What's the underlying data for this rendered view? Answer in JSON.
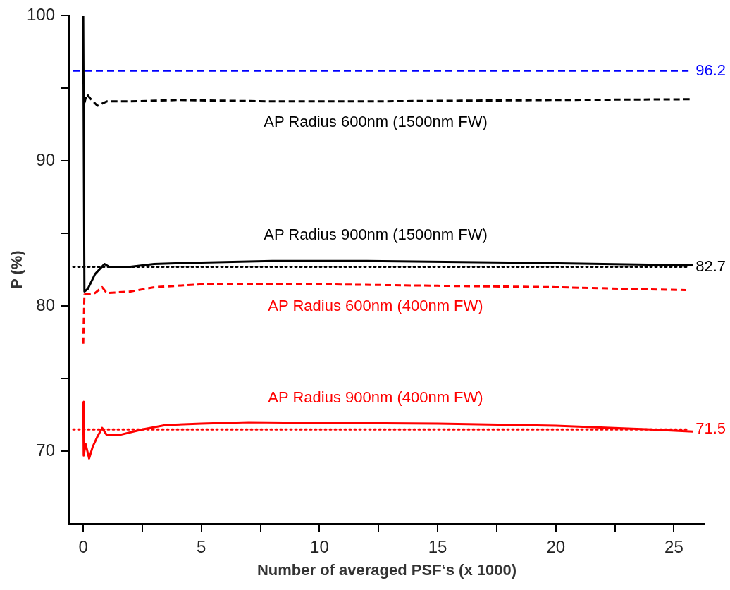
{
  "chart_data": {
    "type": "line",
    "xlabel": "Number of averaged PSF‘s (x 1000)",
    "ylabel": "P (%)",
    "xlim": [
      -0.6,
      26.3
    ],
    "xticks": [
      0,
      {
        "value": 2.5,
        "label": null
      },
      5,
      {
        "value": 7.5,
        "label": null
      },
      10,
      {
        "value": 12.5,
        "label": null
      },
      15,
      {
        "value": 17.5,
        "label": null
      },
      20,
      {
        "value": 22.5,
        "label": null
      },
      25
    ],
    "ylim": [
      65,
      100
    ],
    "yticks": [
      70,
      {
        "value": 75,
        "label": null
      },
      80,
      {
        "value": 85,
        "label": null
      },
      90,
      {
        "value": 95,
        "label": null
      },
      100
    ],
    "grid": false,
    "legend": false,
    "marker": "none",
    "series": [
      {
        "name": "AP Radius 600nm (1500nm FW)",
        "color": "#000000",
        "line_style": "dashed",
        "x": [
          0.05,
          0.15,
          0.3,
          0.6,
          1.0,
          2,
          4,
          8,
          12,
          16,
          20,
          25.8
        ],
        "values": [
          94.0,
          94.6,
          94.3,
          93.8,
          94.1,
          94.1,
          94.2,
          94.1,
          94.1,
          94.15,
          94.2,
          94.25
        ]
      },
      {
        "name": "AP Radius 900nm (1500nm FW)",
        "color": "#000000",
        "line_style": "solid",
        "x": [
          0,
          0.05,
          0.2,
          0.5,
          0.9,
          1.1,
          2,
          3,
          5,
          8,
          12,
          18,
          22,
          25.8
        ],
        "values": [
          100,
          81,
          81.2,
          82.2,
          82.9,
          82.7,
          82.7,
          82.9,
          83.0,
          83.1,
          83.1,
          83.0,
          82.9,
          82.8
        ]
      },
      {
        "name": "AP Radius 600nm (400nm FW)",
        "color": "#ff0000",
        "line_style": "dashed",
        "x": [
          0,
          0.05,
          0.5,
          0.8,
          1.0,
          2,
          3,
          5,
          10,
          15,
          20,
          25.5
        ],
        "values": [
          77.4,
          80.8,
          80.9,
          81.3,
          80.9,
          81.0,
          81.3,
          81.5,
          81.5,
          81.4,
          81.3,
          81.1
        ]
      },
      {
        "name": "AP Radius 900nm (400nm FW)",
        "color": "#ff0000",
        "line_style": "solid",
        "x": [
          0,
          0.02,
          0.1,
          0.25,
          0.4,
          0.6,
          0.8,
          1.0,
          1.5,
          2.5,
          3.5,
          5,
          7,
          10,
          15,
          20,
          24,
          25.8
        ],
        "values": [
          73.4,
          69.7,
          70.5,
          69.5,
          70.3,
          71.0,
          71.6,
          71.1,
          71.1,
          71.5,
          71.8,
          71.9,
          72.0,
          71.95,
          71.9,
          71.75,
          71.5,
          71.35
        ]
      }
    ],
    "ref_lines": [
      {
        "axis": "y",
        "value": 96.2,
        "label": "96.2",
        "color": "#0000ff",
        "line_style": "dashed"
      },
      {
        "axis": "y",
        "value": 82.7,
        "label": "82.7",
        "color": "#000000",
        "line_style": "dotted"
      },
      {
        "axis": "y",
        "value": 71.5,
        "label": "71.5",
        "color": "#ff0000",
        "line_style": "dotted"
      }
    ]
  }
}
